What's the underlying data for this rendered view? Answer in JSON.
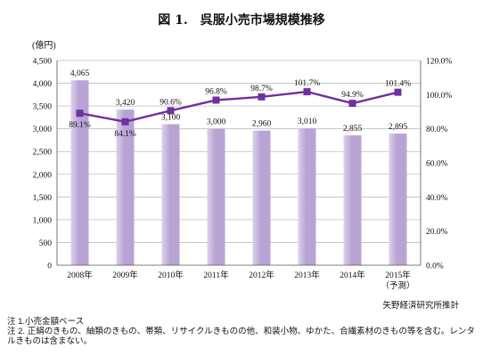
{
  "title": "図 1.　呉服小売市場規模推移",
  "unit_left": "(億円)",
  "source": "矢野経済研究所推計",
  "notes": [
    "注 1.小売金額ベース",
    "注 2. 正絹のきもの、紬類のきもの、帯類、リサイクルきものの他、和装小物、ゆかた、合繊素材のきもの等を含む。レンタルきものは含まない。"
  ],
  "colors": {
    "bar": "#b8a4d4",
    "bar_light": "#dcd2ec",
    "line": "#7030a0",
    "grid": "#bdbdbd"
  },
  "chart_data": {
    "type": "bar",
    "title": "呉服小売市場規模推移",
    "categories": [
      "2008年",
      "2009年",
      "2010年",
      "2011年",
      "2012年",
      "2013年",
      "2014年",
      "2015年\n（予測）"
    ],
    "category_lines": [
      [
        "2008年"
      ],
      [
        "2009年"
      ],
      [
        "2010年"
      ],
      [
        "2011年"
      ],
      [
        "2012年"
      ],
      [
        "2013年"
      ],
      [
        "2014年"
      ],
      [
        "2015年",
        "（予測）"
      ]
    ],
    "series": [
      {
        "type": "bar",
        "axis": "left",
        "values": [
          4065,
          3420,
          3100,
          3000,
          2960,
          3010,
          2855,
          2895
        ],
        "labels": [
          "4,065",
          "3,420",
          "3,100",
          "3,000",
          "2,960",
          "3,010",
          "2,855",
          "2,895"
        ]
      },
      {
        "type": "line",
        "axis": "right",
        "values": [
          89.1,
          84.1,
          90.6,
          96.8,
          98.7,
          101.7,
          94.9,
          101.4
        ],
        "labels": [
          "89.1%",
          "84.1%",
          "90.6%",
          "96.8%",
          "98.7%",
          "101.7%",
          "94.9%",
          "101.4%"
        ]
      }
    ],
    "ylabel": "(億円)",
    "ylim": [
      0,
      4500
    ],
    "y_ticks": [
      "0",
      "500",
      "1,000",
      "1,500",
      "2,000",
      "2,500",
      "3,000",
      "3,500",
      "4,000",
      "4,500"
    ],
    "y2lim": [
      0,
      120
    ],
    "y2_ticks": [
      "0.0%",
      "20.0%",
      "40.0%",
      "60.0%",
      "80.0%",
      "100.0%",
      "120.0%"
    ],
    "grid": true,
    "legend": "none"
  }
}
